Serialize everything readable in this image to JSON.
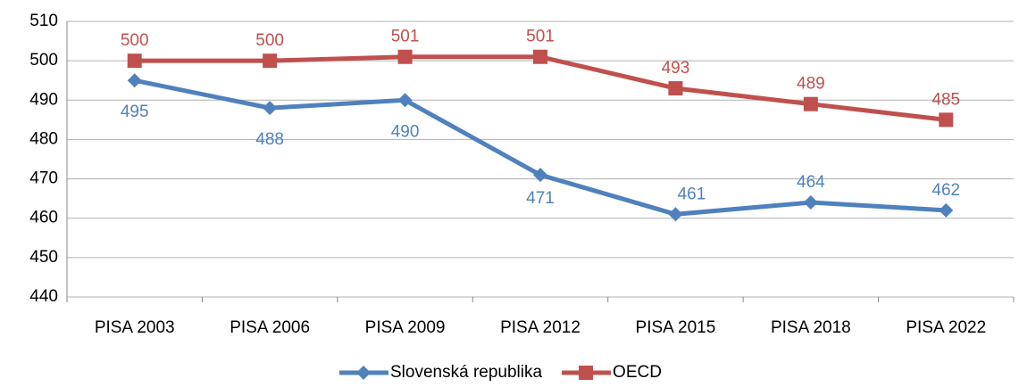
{
  "chart_data": {
    "type": "line",
    "categories": [
      "PISA 2003",
      "PISA 2006",
      "PISA 2009",
      "PISA 2012",
      "PISA 2015",
      "PISA 2018",
      "PISA 2022"
    ],
    "series": [
      {
        "name": "Slovenská republika",
        "color": "#4f81bd",
        "marker": "diamond",
        "values": [
          495,
          488,
          490,
          471,
          461,
          464,
          462
        ]
      },
      {
        "name": "OECD",
        "color": "#c0504d",
        "marker": "square",
        "values": [
          500,
          500,
          501,
          501,
          493,
          489,
          485
        ]
      }
    ],
    "ylim": [
      440,
      510
    ],
    "yticks": [
      440,
      450,
      460,
      470,
      480,
      490,
      500,
      510
    ],
    "grid": true,
    "legend": "bottom"
  }
}
